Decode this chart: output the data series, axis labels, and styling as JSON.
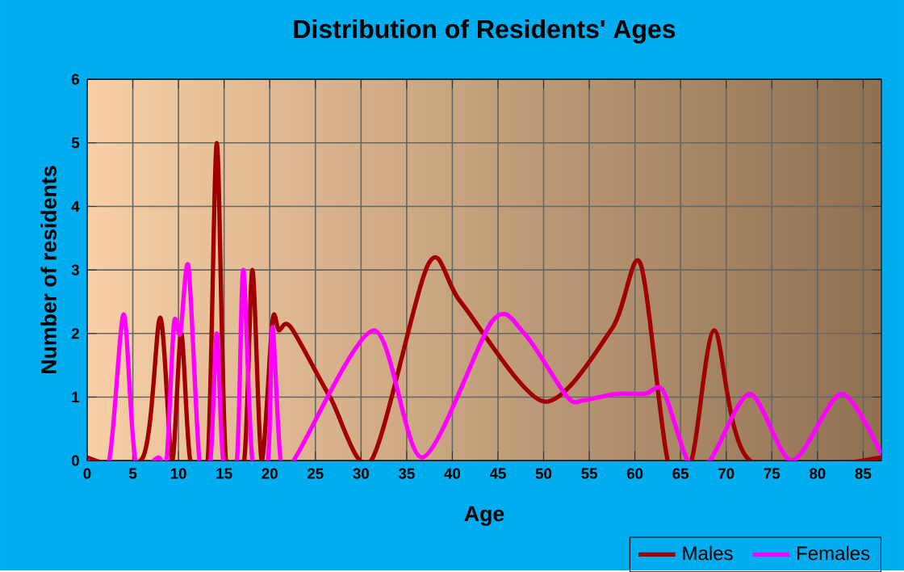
{
  "chart_data": {
    "type": "line",
    "title": "Distribution of Residents' Ages",
    "xlabel": "Age",
    "ylabel": "Number of residents",
    "xlim": [
      0,
      87
    ],
    "ylim": [
      0,
      6
    ],
    "xticks": [
      0,
      5,
      10,
      15,
      20,
      25,
      30,
      35,
      40,
      45,
      50,
      55,
      60,
      65,
      70,
      75,
      80,
      85
    ],
    "yticks": [
      0,
      1,
      2,
      3,
      4,
      5,
      6
    ],
    "grid": true,
    "legend": "bottom right",
    "line_style": "solid",
    "marker": "none",
    "series": [
      {
        "name": "Males",
        "color": "#a00000",
        "x": [
          0,
          6.1,
          8.0,
          9.3,
          10.3,
          11.3,
          13.2,
          14.2,
          15.2,
          17.2,
          18.1,
          19.1,
          20.3,
          21,
          22.3,
          26.6,
          31.1,
          37.4,
          40.9,
          50,
          57.5,
          60.6,
          63.6,
          66.2,
          68.7,
          72.6,
          87
        ],
        "values": [
          0.05,
          0.05,
          2.25,
          0,
          2,
          0,
          0,
          5,
          0,
          0,
          3,
          0,
          2.2,
          2.05,
          2.1,
          1,
          0,
          3.1,
          2.5,
          0.93,
          2.08,
          3.1,
          0,
          0,
          2.05,
          0,
          0.05
        ]
      },
      {
        "name": "Females",
        "color": "#ff00ff",
        "x": [
          0,
          2.4,
          4.0,
          5.3,
          7.8,
          8.7,
          9.5,
          10.2,
          11.1,
          12.3,
          13.5,
          14.2,
          14.9,
          16.4,
          17.1,
          18.1,
          19.8,
          20.3,
          21.2,
          22.6,
          31.4,
          36.7,
          44.4,
          47.9,
          52.6,
          54.4,
          57.9,
          61.1,
          63.1,
          65.8,
          68.2,
          72.6,
          77.2,
          82.6,
          87
        ],
        "values": [
          0,
          0,
          2.3,
          0,
          0.05,
          0,
          2.15,
          2,
          3.05,
          0,
          0,
          2,
          0,
          0,
          3,
          0,
          0,
          2.1,
          0,
          0,
          2.05,
          0.05,
          2.2,
          2,
          1,
          0.95,
          1.05,
          1.05,
          1.1,
          0,
          0,
          1.05,
          0,
          1.05,
          0.1
        ]
      }
    ]
  }
}
